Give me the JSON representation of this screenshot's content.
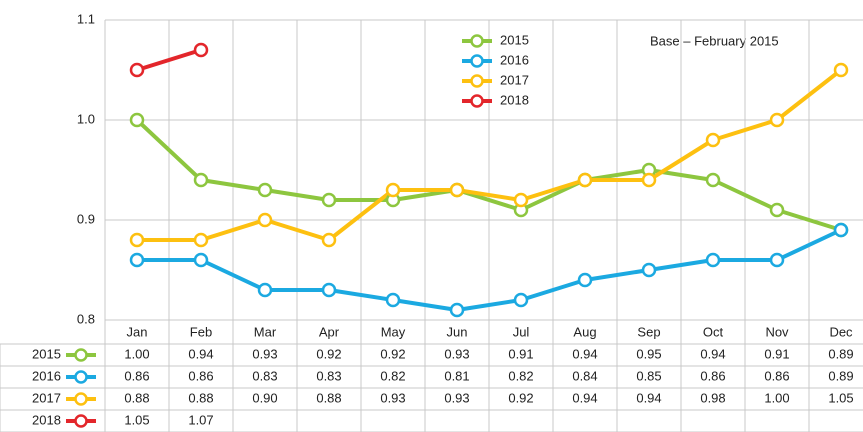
{
  "chart_data": {
    "type": "line",
    "annotation": "Base – February 2015",
    "categories": [
      "Jan",
      "Feb",
      "Mar",
      "Apr",
      "May",
      "Jun",
      "Jul",
      "Aug",
      "Sep",
      "Oct",
      "Nov",
      "Dec"
    ],
    "series": [
      {
        "name": "2015",
        "color": "#8dc63f",
        "values": [
          1.0,
          0.94,
          0.93,
          0.92,
          0.92,
          0.93,
          0.91,
          0.94,
          0.95,
          0.94,
          0.91,
          0.89
        ],
        "value_labels": [
          "1.00",
          "0.94",
          "0.93",
          "0.92",
          "0.92",
          "0.93",
          "0.91",
          "0.94",
          "0.95",
          "0.94",
          "0.91",
          "0.89"
        ]
      },
      {
        "name": "2016",
        "color": "#1ba9e1",
        "values": [
          0.86,
          0.86,
          0.83,
          0.83,
          0.82,
          0.81,
          0.82,
          0.84,
          0.85,
          0.86,
          0.86,
          0.89
        ],
        "value_labels": [
          "0.86",
          "0.86",
          "0.83",
          "0.83",
          "0.82",
          "0.81",
          "0.82",
          "0.84",
          "0.85",
          "0.86",
          "0.86",
          "0.89"
        ]
      },
      {
        "name": "2017",
        "color": "#fdc010",
        "values": [
          0.88,
          0.88,
          0.9,
          0.88,
          0.93,
          0.93,
          0.92,
          0.94,
          0.94,
          0.98,
          1.0,
          1.05
        ],
        "value_labels": [
          "0.88",
          "0.88",
          "0.90",
          "0.88",
          "0.93",
          "0.93",
          "0.92",
          "0.94",
          "0.94",
          "0.98",
          "1.00",
          "1.05"
        ]
      },
      {
        "name": "2018",
        "color": "#e3262b",
        "values": [
          1.05,
          1.07,
          null,
          null,
          null,
          null,
          null,
          null,
          null,
          null,
          null,
          null
        ],
        "value_labels": [
          "1.05",
          "1.07",
          null,
          null,
          null,
          null,
          null,
          null,
          null,
          null,
          null,
          null
        ]
      }
    ],
    "ylim": [
      0.8,
      1.1
    ],
    "yticks": [
      0.8,
      0.9,
      {
        "value": 1,
        "label": "1.0"
      },
      1.1
    ],
    "grid": true
  }
}
